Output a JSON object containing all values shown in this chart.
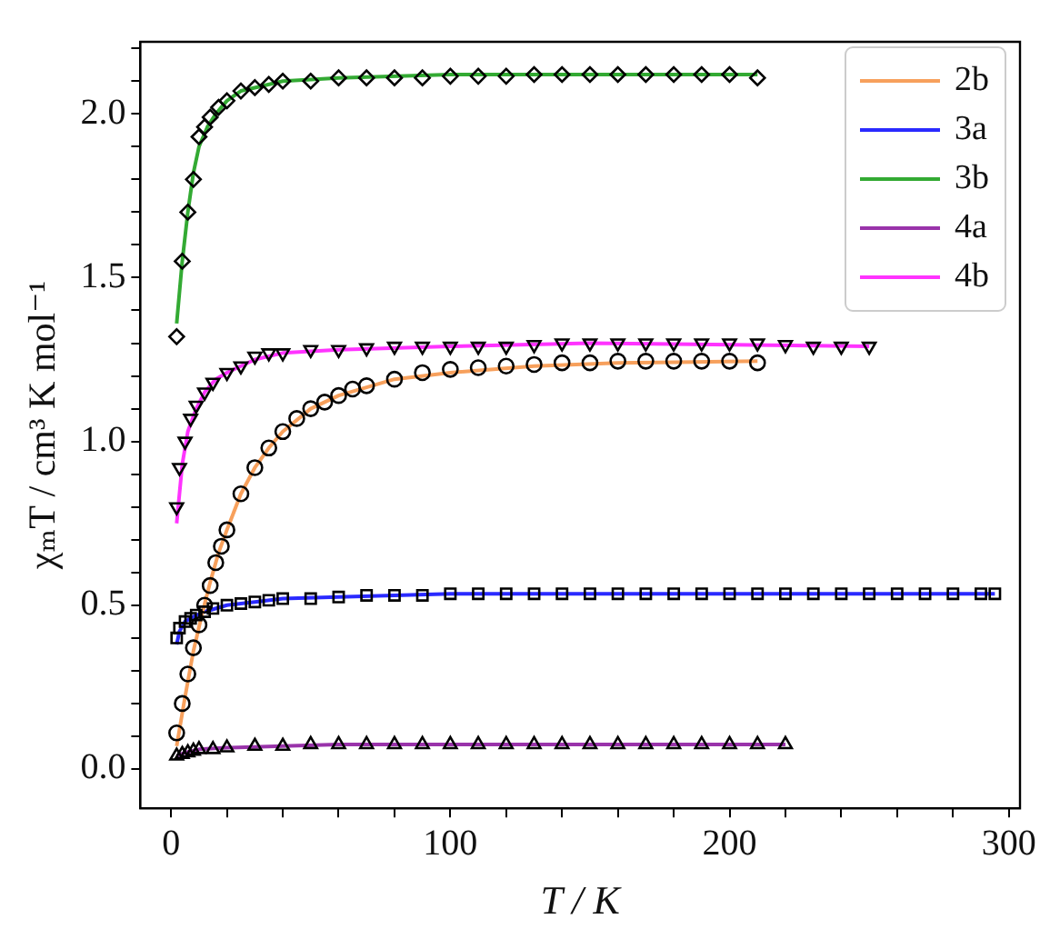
{
  "chart_data": {
    "type": "scatter",
    "xlabel": "T / K",
    "ylabel": "χₘT / cm³ K mol⁻¹",
    "xlim": [
      -11,
      304
    ],
    "ylim": [
      -0.12,
      2.22
    ],
    "xticks": [
      0,
      {
        "value": 20,
        "label": null
      },
      {
        "value": 40,
        "label": null
      },
      {
        "value": 60,
        "label": null
      },
      {
        "value": 80,
        "label": null
      },
      100,
      {
        "value": 120,
        "label": null
      },
      {
        "value": 140,
        "label": null
      },
      {
        "value": 160,
        "label": null
      },
      {
        "value": 180,
        "label": null
      },
      200,
      {
        "value": 220,
        "label": null
      },
      {
        "value": 240,
        "label": null
      },
      {
        "value": 260,
        "label": null
      },
      {
        "value": 280,
        "label": null
      },
      300
    ],
    "yticks": [
      {
        "value": 0,
        "label": "0.0"
      },
      {
        "value": 0.1,
        "label": null
      },
      {
        "value": 0.2,
        "label": null
      },
      {
        "value": 0.3,
        "label": null
      },
      {
        "value": 0.4,
        "label": null
      },
      0.5,
      {
        "value": 0.6,
        "label": null
      },
      {
        "value": 0.7,
        "label": null
      },
      {
        "value": 0.8,
        "label": null
      },
      {
        "value": 0.9,
        "label": null
      },
      {
        "value": 1,
        "label": "1.0"
      },
      {
        "value": 1.1,
        "label": null
      },
      {
        "value": 1.2,
        "label": null
      },
      {
        "value": 1.3,
        "label": null
      },
      {
        "value": 1.4,
        "label": null
      },
      1.5,
      {
        "value": 1.6,
        "label": null
      },
      {
        "value": 1.7,
        "label": null
      },
      {
        "value": 1.8,
        "label": null
      },
      {
        "value": 1.9,
        "label": null
      },
      {
        "value": 2,
        "label": "2.0"
      },
      {
        "value": 2.1,
        "label": null
      },
      {
        "value": 2.2,
        "label": null
      }
    ],
    "legend": "top right",
    "series": [
      {
        "name": "2b",
        "type": "line",
        "color": "#f7a05c",
        "marker": "none",
        "x": [
          2,
          5,
          8,
          11,
          14,
          17,
          20,
          25,
          30,
          35,
          40,
          50,
          60,
          80,
          100,
          130,
          160,
          210
        ],
        "values": [
          0.07,
          0.22,
          0.36,
          0.47,
          0.57,
          0.66,
          0.73,
          0.84,
          0.92,
          0.98,
          1.03,
          1.1,
          1.14,
          1.19,
          1.21,
          1.23,
          1.24,
          1.245
        ]
      },
      {
        "name": "3a",
        "type": "line",
        "color": "#2a2aff",
        "marker": "none",
        "x": [
          2,
          3,
          5,
          8,
          12,
          20,
          30,
          40,
          60,
          100,
          150,
          200,
          295
        ],
        "values": [
          0.38,
          0.42,
          0.45,
          0.465,
          0.48,
          0.5,
          0.51,
          0.52,
          0.525,
          0.535,
          0.535,
          0.535,
          0.535
        ]
      },
      {
        "name": "3b",
        "type": "line",
        "color": "#33aa33",
        "marker": "none",
        "x": [
          2,
          4,
          6,
          8,
          10,
          13,
          16,
          20,
          25,
          30,
          40,
          60,
          100,
          150,
          210
        ],
        "values": [
          1.36,
          1.55,
          1.7,
          1.82,
          1.9,
          1.96,
          2.0,
          2.04,
          2.07,
          2.08,
          2.1,
          2.11,
          2.12,
          2.12,
          2.12
        ]
      },
      {
        "name": "4a",
        "type": "line",
        "color": "#9933aa",
        "marker": "none",
        "x": [
          2,
          5,
          10,
          20,
          40,
          60,
          100,
          160,
          220
        ],
        "values": [
          0.04,
          0.05,
          0.06,
          0.065,
          0.07,
          0.075,
          0.075,
          0.075,
          0.075
        ]
      },
      {
        "name": "4b",
        "type": "line",
        "color": "#ff33ff",
        "marker": "none",
        "x": [
          2,
          4,
          6,
          9,
          12,
          16,
          20,
          25,
          30,
          40,
          60,
          100,
          150,
          250
        ],
        "values": [
          0.75,
          0.93,
          1.03,
          1.1,
          1.15,
          1.19,
          1.21,
          1.23,
          1.25,
          1.27,
          1.28,
          1.29,
          1.3,
          1.29
        ]
      },
      {
        "type": "scatter",
        "color": "#000000",
        "marker": "circle",
        "x": [
          2,
          4,
          6,
          8,
          10,
          12,
          14,
          16,
          18,
          20,
          25,
          30,
          35,
          40,
          45,
          50,
          55,
          60,
          65,
          70,
          80,
          90,
          100,
          110,
          120,
          130,
          140,
          150,
          160,
          170,
          180,
          190,
          200,
          210
        ],
        "values": [
          0.11,
          0.2,
          0.29,
          0.37,
          0.44,
          0.5,
          0.56,
          0.63,
          0.68,
          0.73,
          0.84,
          0.92,
          0.98,
          1.03,
          1.07,
          1.1,
          1.12,
          1.14,
          1.16,
          1.17,
          1.19,
          1.21,
          1.22,
          1.225,
          1.23,
          1.235,
          1.24,
          1.24,
          1.245,
          1.245,
          1.245,
          1.245,
          1.245,
          1.24
        ]
      },
      {
        "type": "scatter",
        "color": "#000000",
        "marker": "square",
        "x": [
          2,
          3,
          5,
          7,
          9,
          12,
          15,
          20,
          25,
          30,
          35,
          40,
          50,
          60,
          70,
          80,
          90,
          100,
          110,
          120,
          130,
          140,
          150,
          160,
          170,
          180,
          190,
          200,
          210,
          220,
          230,
          240,
          250,
          260,
          270,
          280,
          290,
          295
        ],
        "values": [
          0.4,
          0.43,
          0.45,
          0.46,
          0.47,
          0.48,
          0.49,
          0.5,
          0.505,
          0.51,
          0.515,
          0.52,
          0.52,
          0.525,
          0.53,
          0.53,
          0.53,
          0.535,
          0.535,
          0.535,
          0.535,
          0.535,
          0.535,
          0.535,
          0.535,
          0.535,
          0.535,
          0.535,
          0.535,
          0.535,
          0.535,
          0.535,
          0.535,
          0.535,
          0.535,
          0.535,
          0.535,
          0.535
        ]
      },
      {
        "type": "scatter",
        "color": "#000000",
        "marker": "diamond",
        "x": [
          2,
          4,
          6,
          8,
          10,
          12,
          14,
          17,
          20,
          25,
          30,
          35,
          40,
          50,
          60,
          70,
          80,
          90,
          100,
          110,
          120,
          130,
          140,
          150,
          160,
          170,
          180,
          190,
          200,
          210
        ],
        "values": [
          1.32,
          1.55,
          1.7,
          1.8,
          1.93,
          1.96,
          1.99,
          2.02,
          2.04,
          2.07,
          2.08,
          2.09,
          2.1,
          2.1,
          2.11,
          2.11,
          2.11,
          2.11,
          2.115,
          2.115,
          2.115,
          2.12,
          2.12,
          2.12,
          2.12,
          2.12,
          2.12,
          2.12,
          2.12,
          2.11
        ]
      },
      {
        "type": "scatter",
        "color": "#000000",
        "marker": "triangle",
        "x": [
          2,
          4,
          6,
          8,
          10,
          15,
          20,
          30,
          40,
          50,
          60,
          70,
          80,
          90,
          100,
          110,
          120,
          130,
          140,
          150,
          160,
          170,
          180,
          190,
          200,
          210,
          220
        ],
        "values": [
          0.04,
          0.045,
          0.05,
          0.055,
          0.06,
          0.06,
          0.065,
          0.07,
          0.07,
          0.075,
          0.075,
          0.075,
          0.075,
          0.075,
          0.075,
          0.075,
          0.075,
          0.075,
          0.075,
          0.075,
          0.075,
          0.075,
          0.075,
          0.075,
          0.075,
          0.075,
          0.075
        ]
      },
      {
        "type": "scatter",
        "color": "#000000",
        "marker": "triangle-down",
        "x": [
          2,
          3,
          5,
          7,
          9,
          12,
          15,
          20,
          25,
          30,
          35,
          40,
          50,
          60,
          70,
          80,
          90,
          100,
          110,
          120,
          130,
          140,
          150,
          160,
          170,
          180,
          190,
          200,
          210,
          220,
          230,
          240,
          250
        ],
        "values": [
          0.8,
          0.92,
          1.0,
          1.07,
          1.11,
          1.15,
          1.18,
          1.21,
          1.23,
          1.26,
          1.27,
          1.27,
          1.28,
          1.28,
          1.285,
          1.29,
          1.29,
          1.29,
          1.29,
          1.29,
          1.295,
          1.3,
          1.3,
          1.3,
          1.3,
          1.3,
          1.3,
          1.3,
          1.3,
          1.295,
          1.29,
          1.29,
          1.29
        ]
      }
    ]
  }
}
